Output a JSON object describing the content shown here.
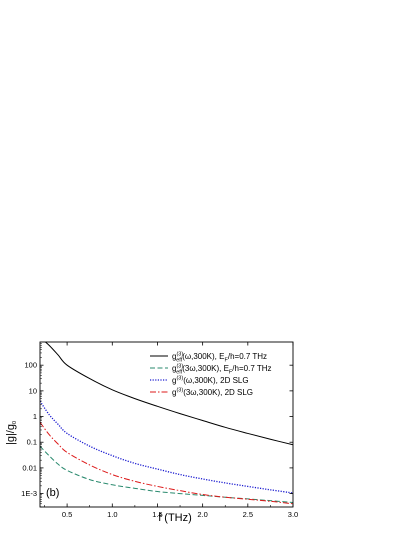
{
  "chart_data": {
    "type": "line",
    "xlabel": "f (THz)",
    "ylabel": "|g|/g",
    "ylabel_sub": "0",
    "xlim": [
      0.2,
      3.0
    ],
    "ylim": [
      0.0003,
      800
    ],
    "yscale": "log",
    "panel_label": "(b)",
    "xticks": [
      0.5,
      1.0,
      1.5,
      2.0,
      2.5,
      3.0
    ],
    "xtick_labels": [
      "0.5",
      "1.0",
      "1.5",
      "2.0",
      "2.5",
      "3.0"
    ],
    "yticks": [
      0.001,
      0.01,
      0.1,
      1,
      10,
      100
    ],
    "ytick_labels": [
      "1E-3",
      "0.01",
      "0.1",
      "1",
      "10",
      "100"
    ],
    "legend_position": "top-right",
    "x": [
      0.2,
      0.3,
      0.4,
      0.5,
      0.75,
      1.0,
      1.25,
      1.5,
      1.75,
      2.0,
      2.25,
      2.5,
      2.75,
      3.0
    ],
    "series": [
      {
        "name_base": "g",
        "name_sup": "(3)",
        "name_sub": "eff",
        "name_tail": "(ω,300K), E",
        "name_sub2": "F",
        "name_end": "/h=0.7 THz",
        "color": "#000000",
        "dash": "solid",
        "values": [
          1200,
          600,
          250,
          100,
          30,
          11,
          5,
          2.5,
          1.3,
          0.7,
          0.38,
          0.22,
          0.13,
          0.08
        ]
      },
      {
        "name_base": "g",
        "name_sup": "(3)",
        "name_sub": "eff",
        "name_tail": "(3ω,300K), E",
        "name_sub2": "F",
        "name_end": "/h=0.7 THz",
        "color": "#2a8a6e",
        "dash": "dashed",
        "values": [
          0.07,
          0.03,
          0.014,
          0.008,
          0.0035,
          0.0022,
          0.0016,
          0.0012,
          0.001,
          0.00085,
          0.00072,
          0.00062,
          0.00053,
          0.00045
        ]
      },
      {
        "name_base": "g",
        "name_sup": "(3)",
        "name_sub": "",
        "name_tail": "(ω,300K), 2D SLG",
        "name_sub2": "",
        "name_end": "",
        "color": "#1a1ad0",
        "dash": "dotted",
        "values": [
          4,
          1.2,
          0.5,
          0.22,
          0.07,
          0.03,
          0.015,
          0.009,
          0.0055,
          0.0037,
          0.0026,
          0.0019,
          0.0014,
          0.00105
        ]
      },
      {
        "name_base": "g",
        "name_sup": "(3)",
        "name_sub": "",
        "name_tail": "(3ω,300K), 2D SLG",
        "name_sub2": "",
        "name_end": "",
        "color": "#dd1a1a",
        "dash": "dashdot",
        "values": [
          0.6,
          0.2,
          0.085,
          0.04,
          0.013,
          0.0055,
          0.003,
          0.0019,
          0.0013,
          0.00092,
          0.00072,
          0.0006,
          0.0005,
          0.0004
        ]
      }
    ]
  }
}
